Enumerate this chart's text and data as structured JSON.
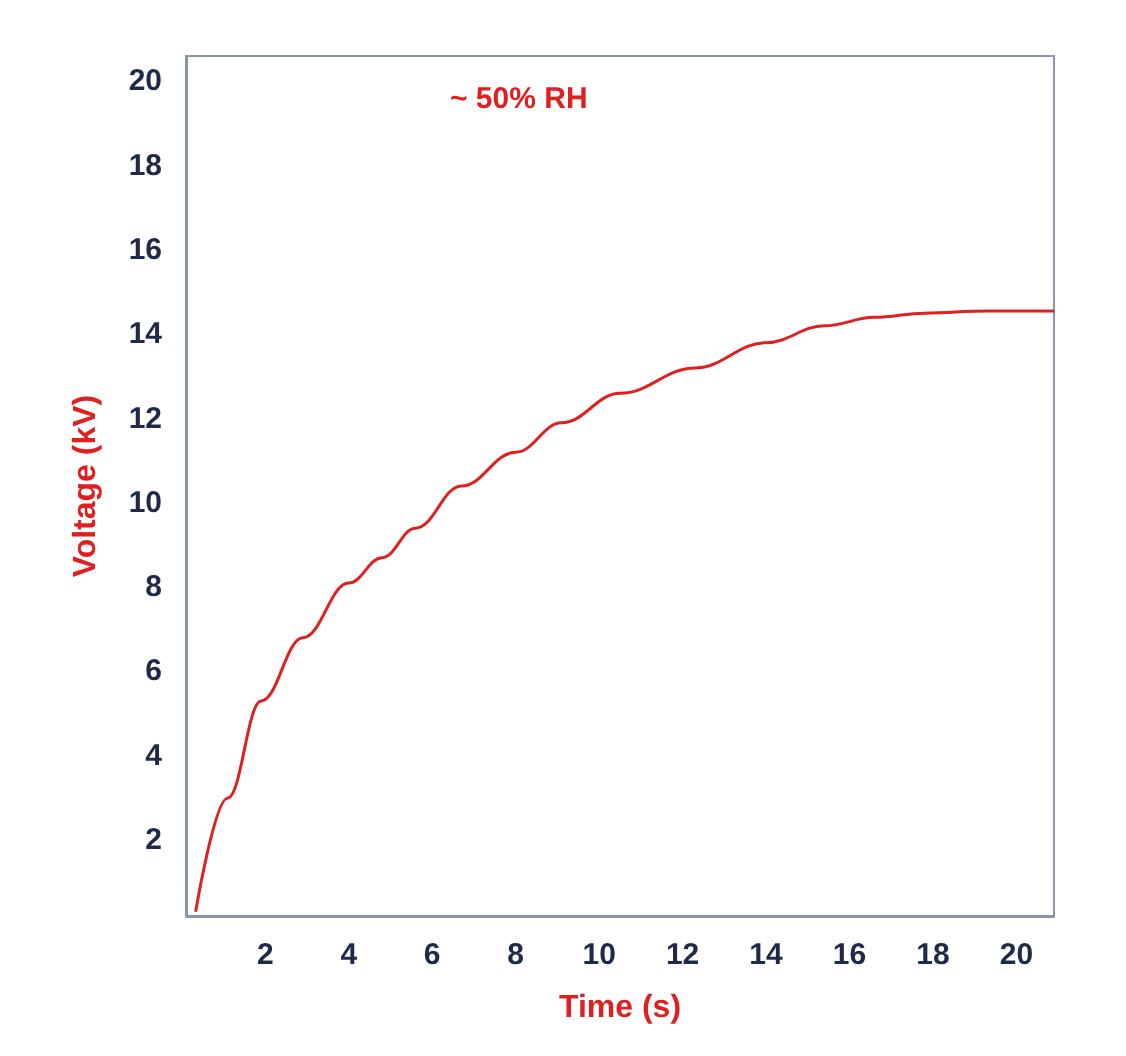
{
  "chart_data": {
    "type": "line",
    "xlabel": "Time (s)",
    "ylabel": "Voltage (kV)",
    "annotations": [
      "~ 50% RH"
    ],
    "x": [
      0.33,
      1.1,
      1.9,
      2.9,
      4.0,
      4.8,
      5.6,
      6.7,
      8.0,
      9.1,
      10.5,
      12.3,
      14.0,
      15.4,
      16.6,
      17.8,
      19.3,
      20.9
    ],
    "series": [
      {
        "color": "#e02020",
        "values": [
          0.3,
          3.0,
          5.3,
          6.8,
          8.1,
          8.7,
          9.4,
          10.4,
          11.2,
          11.9,
          12.6,
          13.2,
          13.8,
          14.2,
          14.4,
          14.5,
          14.55,
          14.55
        ]
      }
    ],
    "xlim": [
      0.1,
      20.9
    ],
    "ylim": [
      0.2,
      20.6
    ],
    "xticks": [
      2,
      4,
      6,
      8,
      10,
      12,
      14,
      16,
      18,
      20
    ],
    "yticks": [
      2,
      4,
      6,
      8,
      10,
      12,
      14,
      16,
      18,
      20
    ],
    "grid": false,
    "marker": "none",
    "line_style": "solid"
  }
}
